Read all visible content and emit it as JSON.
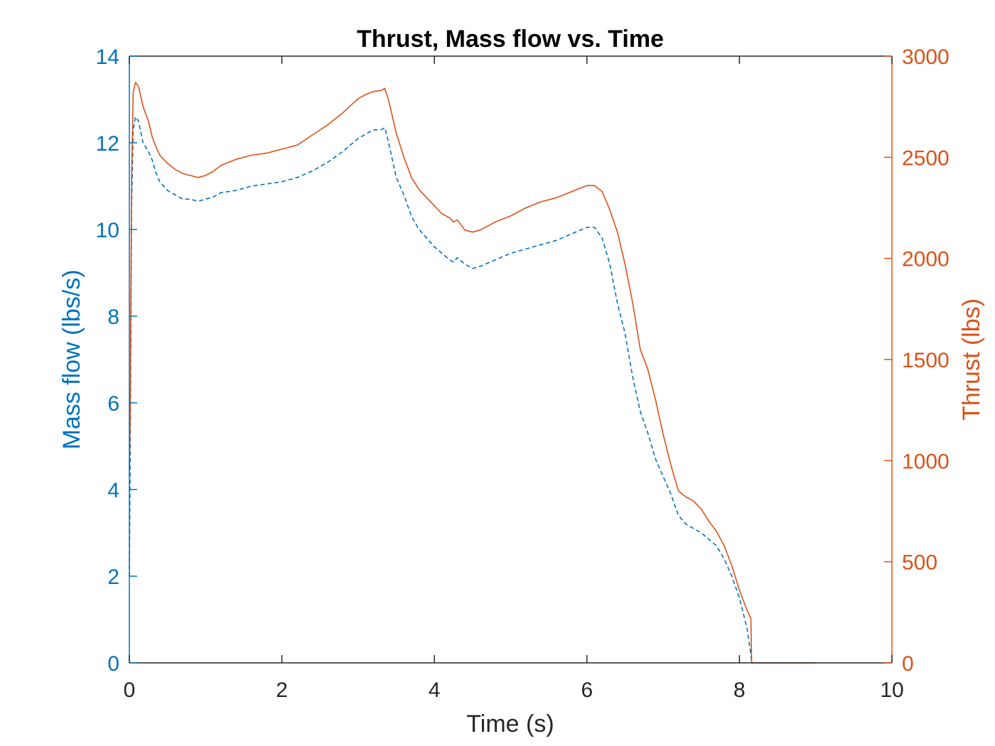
{
  "chart_data": {
    "type": "line",
    "title": "Thrust, Mass flow vs. Time",
    "xlabel": "Time (s)",
    "ylabel_left": "Mass flow (lbs/s)",
    "ylabel_right": "Thrust (lbs)",
    "xlim": [
      0,
      10
    ],
    "ylim_left": [
      0,
      14
    ],
    "ylim_right": [
      0,
      3000
    ],
    "xticks": [
      "0",
      "2",
      "4",
      "6",
      "8",
      "10"
    ],
    "yticks_left": [
      "0",
      "2",
      "4",
      "6",
      "8",
      "10",
      "12",
      "14"
    ],
    "yticks_right": [
      "0",
      "500",
      "1000",
      "1500",
      "2000",
      "2500",
      "3000"
    ],
    "grid": false,
    "colors": {
      "left_axis": "#0072BD",
      "right_axis": "#D95319",
      "x_axis": "#262626"
    },
    "series": [
      {
        "axis": "left",
        "style": "dashed",
        "color": "#0072BD",
        "x": [
          0,
          0.01,
          0.03,
          0.05,
          0.08,
          0.12,
          0.18,
          0.25,
          0.3,
          0.35,
          0.4,
          0.5,
          0.6,
          0.7,
          0.8,
          0.9,
          1.0,
          1.1,
          1.2,
          1.4,
          1.6,
          1.8,
          2.0,
          2.2,
          2.4,
          2.6,
          2.8,
          3.0,
          3.1,
          3.2,
          3.3,
          3.35,
          3.4,
          3.45,
          3.5,
          3.6,
          3.7,
          3.8,
          3.9,
          4.0,
          4.1,
          4.2,
          4.25,
          4.3,
          4.4,
          4.5,
          4.6,
          4.8,
          5.0,
          5.2,
          5.4,
          5.6,
          5.8,
          6.0,
          6.1,
          6.2,
          6.3,
          6.4,
          6.5,
          6.6,
          6.7,
          6.8,
          6.9,
          7.0,
          7.1,
          7.2,
          7.3,
          7.4,
          7.5,
          7.6,
          7.7,
          7.8,
          7.9,
          8.0,
          8.1,
          8.15,
          8.16,
          8.3,
          8.5,
          8.7,
          8.9,
          9.0
        ],
        "y": [
          2.0,
          4.5,
          10.5,
          12.3,
          12.6,
          12.5,
          12.0,
          11.8,
          11.6,
          11.3,
          11.1,
          10.9,
          10.8,
          10.7,
          10.7,
          10.65,
          10.7,
          10.75,
          10.85,
          10.9,
          11.0,
          11.05,
          11.1,
          11.2,
          11.35,
          11.55,
          11.8,
          12.1,
          12.2,
          12.3,
          12.3,
          12.35,
          12.0,
          11.6,
          11.2,
          10.8,
          10.3,
          10.0,
          9.8,
          9.6,
          9.45,
          9.3,
          9.25,
          9.35,
          9.2,
          9.1,
          9.15,
          9.3,
          9.45,
          9.55,
          9.65,
          9.75,
          9.9,
          10.05,
          10.05,
          9.8,
          9.2,
          8.3,
          7.6,
          6.6,
          5.8,
          5.3,
          4.7,
          4.3,
          3.9,
          3.4,
          3.2,
          3.1,
          3.0,
          2.85,
          2.7,
          2.4,
          2.0,
          1.5,
          0.8,
          0.2,
          0.0,
          0.0,
          0.0,
          0.0,
          0.0,
          0.0
        ]
      },
      {
        "axis": "right",
        "style": "solid",
        "color": "#D95319",
        "x": [
          0,
          0.01,
          0.03,
          0.05,
          0.08,
          0.12,
          0.18,
          0.25,
          0.3,
          0.35,
          0.4,
          0.5,
          0.6,
          0.7,
          0.8,
          0.9,
          1.0,
          1.1,
          1.2,
          1.4,
          1.6,
          1.8,
          2.0,
          2.2,
          2.4,
          2.6,
          2.8,
          3.0,
          3.1,
          3.2,
          3.3,
          3.35,
          3.4,
          3.45,
          3.5,
          3.6,
          3.7,
          3.8,
          3.9,
          4.0,
          4.1,
          4.2,
          4.25,
          4.3,
          4.4,
          4.5,
          4.6,
          4.8,
          5.0,
          5.2,
          5.4,
          5.6,
          5.8,
          6.0,
          6.1,
          6.2,
          6.3,
          6.4,
          6.5,
          6.6,
          6.7,
          6.8,
          6.9,
          7.0,
          7.1,
          7.2,
          7.3,
          7.4,
          7.5,
          7.6,
          7.7,
          7.8,
          7.9,
          8.0,
          8.1,
          8.15,
          8.16,
          8.3,
          8.5,
          8.7,
          8.9,
          9.0
        ],
        "y": [
          950,
          1200,
          2400,
          2820,
          2870,
          2850,
          2750,
          2680,
          2600,
          2550,
          2510,
          2470,
          2440,
          2420,
          2410,
          2400,
          2410,
          2430,
          2460,
          2490,
          2510,
          2520,
          2540,
          2560,
          2610,
          2660,
          2720,
          2790,
          2810,
          2825,
          2830,
          2840,
          2780,
          2700,
          2620,
          2500,
          2400,
          2340,
          2300,
          2260,
          2220,
          2200,
          2180,
          2190,
          2140,
          2130,
          2140,
          2180,
          2210,
          2250,
          2280,
          2300,
          2330,
          2360,
          2360,
          2330,
          2240,
          2130,
          1970,
          1780,
          1550,
          1450,
          1300,
          1130,
          980,
          850,
          820,
          800,
          760,
          700,
          650,
          580,
          480,
          360,
          260,
          220,
          0,
          0,
          0,
          0,
          0,
          0
        ]
      }
    ]
  }
}
